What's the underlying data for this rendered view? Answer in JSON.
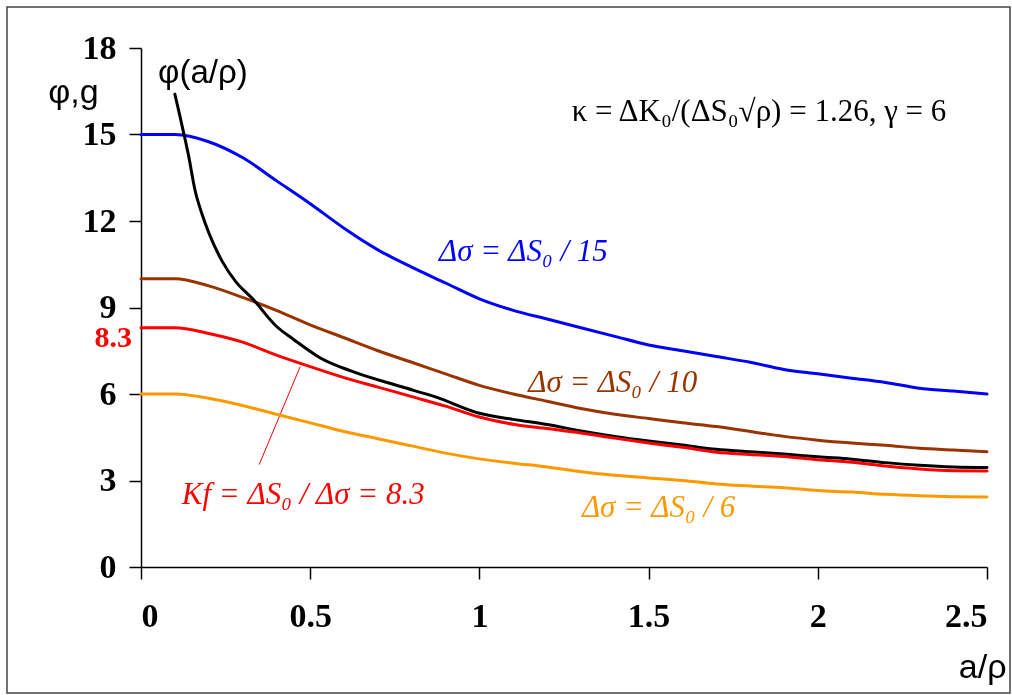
{
  "chart_data": {
    "type": "line",
    "xlabel": "a/ρ",
    "ylabel": "φ,g",
    "xlim": [
      0,
      2.5
    ],
    "xticks": [
      0,
      0.5,
      1,
      1.5,
      2,
      2.5
    ],
    "ylim": [
      0,
      18
    ],
    "yticks": [
      0,
      3,
      6,
      9,
      12,
      15,
      18
    ],
    "annotations": [
      "κ = ΔK₀/(ΔS₀√ρ) = 1.26, γ = 6"
    ],
    "x": [
      0,
      0.1,
      0.2,
      0.3,
      0.4,
      0.5,
      0.6,
      0.7,
      0.8,
      0.9,
      1.0,
      1.1,
      1.2,
      1.3,
      1.4,
      1.5,
      1.6,
      1.7,
      1.8,
      1.9,
      2.0,
      2.1,
      2.2,
      2.3,
      2.4,
      2.5
    ],
    "series": [
      {
        "name": "Δσ = ΔS₀ / 15",
        "color": "#0000ff",
        "values": [
          15,
          15,
          14.75,
          14.2,
          13.4,
          12.6,
          11.75,
          11.0,
          10.4,
          9.85,
          9.3,
          8.9,
          8.6,
          8.3,
          8.0,
          7.7,
          7.5,
          7.3,
          7.1,
          6.85,
          6.7,
          6.55,
          6.4,
          6.2,
          6.1,
          6.0
        ]
      },
      {
        "name": "Δσ = ΔS₀ / 10",
        "color": "#993300",
        "values": [
          10,
          10,
          9.75,
          9.35,
          8.9,
          8.4,
          7.95,
          7.5,
          7.1,
          6.7,
          6.3,
          6.0,
          5.75,
          5.5,
          5.3,
          5.15,
          5.0,
          4.87,
          4.7,
          4.53,
          4.4,
          4.3,
          4.22,
          4.12,
          4.06,
          4.0
        ]
      },
      {
        "name": "φ(a/ρ)",
        "color": "#000000",
        "x": [
          0.1,
          0.11,
          0.13,
          0.14,
          0.16,
          0.18,
          0.2,
          0.24,
          0.28,
          0.33,
          0.4,
          0.45,
          0.53,
          0.62,
          0.77,
          0.87,
          1.0,
          1.1,
          1.2,
          1.3,
          1.4,
          1.5,
          1.6,
          1.7,
          1.8,
          1.9,
          2.0,
          2.1,
          2.2,
          2.3,
          2.4,
          2.5
        ],
        "values": [
          16.4,
          15.9,
          14.85,
          14.3,
          13.05,
          12.25,
          11.6,
          10.6,
          9.9,
          9.3,
          8.35,
          7.9,
          7.25,
          6.8,
          6.25,
          5.9,
          5.33,
          5.12,
          4.94,
          4.72,
          4.53,
          4.37,
          4.23,
          4.08,
          4.0,
          3.92,
          3.82,
          3.74,
          3.62,
          3.53,
          3.47,
          3.45
        ]
      },
      {
        "name": "Kf = ΔS₀ / Δσ = 8.3",
        "color": "#ff0000",
        "values": [
          8.3,
          8.3,
          8.1,
          7.8,
          7.35,
          6.95,
          6.57,
          6.24,
          5.91,
          5.58,
          5.2,
          4.95,
          4.8,
          4.65,
          4.47,
          4.3,
          4.15,
          3.98,
          3.9,
          3.83,
          3.72,
          3.63,
          3.5,
          3.4,
          3.34,
          3.33
        ],
        "value_labels": [
          "8.3",
          null,
          null,
          null,
          null,
          null,
          null,
          null,
          null,
          null,
          null,
          null,
          null,
          null,
          null,
          null,
          null,
          null,
          null,
          null,
          null,
          null,
          null,
          null,
          null,
          null
        ]
      },
      {
        "name": "Δσ = ΔS₀ / 6",
        "color": "#ff9900",
        "values": [
          6,
          6,
          5.85,
          5.6,
          5.3,
          5.0,
          4.7,
          4.45,
          4.2,
          3.95,
          3.75,
          3.6,
          3.47,
          3.3,
          3.18,
          3.09,
          3.0,
          2.88,
          2.81,
          2.75,
          2.65,
          2.6,
          2.52,
          2.47,
          2.44,
          2.43
        ]
      }
    ]
  }
}
